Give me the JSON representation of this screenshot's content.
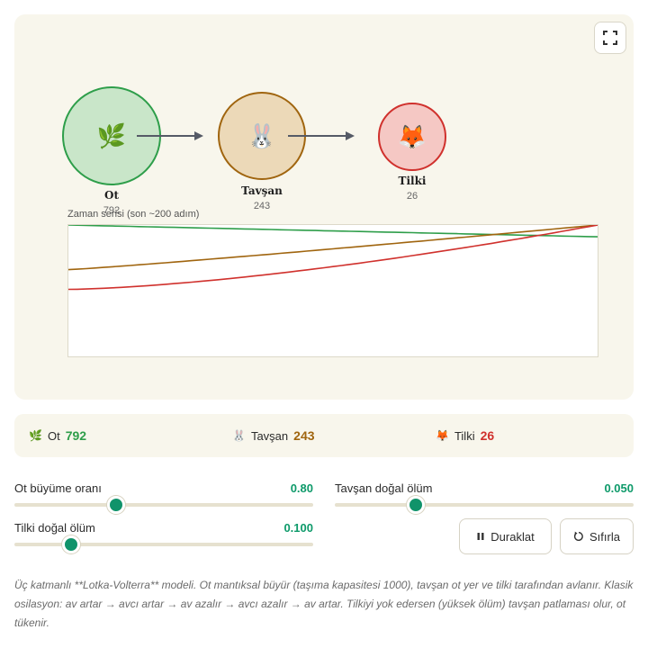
{
  "canvas": {
    "fullscreen_icon": "fullscreen-icon",
    "nodes": [
      {
        "name": "Ot",
        "count": "792",
        "icon": "🌿",
        "fill": "#c9e6c9",
        "border": "#2e9e4a"
      },
      {
        "name": "Tavşan",
        "count": "243",
        "icon": "🐰",
        "fill": "#ecd9b8",
        "border": "#a0650f"
      },
      {
        "name": "Tilki",
        "count": "26",
        "icon": "🦊",
        "fill": "#f5c8c4",
        "border": "#d0312d"
      }
    ],
    "chart_caption": "Zaman serisi (son ~200 adım)"
  },
  "chart_data": {
    "type": "line",
    "title": "",
    "xlabel": "",
    "ylabel": "",
    "x": [
      0,
      1
    ],
    "ylim": [
      0,
      1
    ],
    "series": [
      {
        "values": [
          1.0,
          0.91
        ],
        "color": "#2e9e4a"
      },
      {
        "values": [
          0.66,
          1.0
        ],
        "color": "#a0650f"
      },
      {
        "values": [
          0.51,
          1.0
        ],
        "color": "#d0312d"
      }
    ]
  },
  "stats": {
    "ot": {
      "icon": "🌿",
      "label": "Ot",
      "value": "792",
      "color": "#2e9e4a"
    },
    "tavsan": {
      "icon": "🐰",
      "label": "Tavşan",
      "value": "243",
      "color": "#a0650f"
    },
    "tilki": {
      "icon": "🦊",
      "label": "Tilki",
      "value": "26",
      "color": "#d0312d"
    }
  },
  "controls": {
    "ot_growth": {
      "label": "Ot büyüme oranı",
      "value": "0.80",
      "fraction": 0.34
    },
    "tavsan_death": {
      "label": "Tavşan doğal ölüm",
      "value": "0.050",
      "fraction": 0.27
    },
    "tilki_death": {
      "label": "Tilki doğal ölüm",
      "value": "0.100",
      "fraction": 0.19
    },
    "pause_button": "Duraklat",
    "reset_button": "Sıfırla"
  },
  "description": "Üç katmanlı **Lotka-Volterra** modeli. Ot mantıksal büyür (taşıma kapasitesi 1000), tavşan ot yer ve tilki tarafından avlanır. Klasik osilasyon: av artar → avcı artar → av azalır → avcı azalır → av artar. Tilkiyi yok edersen (yüksek ölüm) tavşan patlaması olur, ot tükenir."
}
